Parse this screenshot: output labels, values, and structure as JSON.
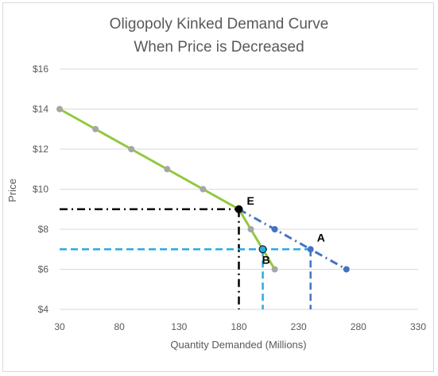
{
  "chart_data": {
    "type": "line",
    "title_lines": [
      "Oligopoly Kinked Demand Curve",
      "When Price is Decreased"
    ],
    "xlabel": "Quantity Demanded (Millions)",
    "ylabel": "Price",
    "xlim": [
      30,
      330
    ],
    "ylim": [
      4,
      16
    ],
    "x_ticks": [
      30,
      80,
      130,
      180,
      230,
      280,
      330
    ],
    "y_ticks": [
      4,
      6,
      8,
      10,
      12,
      14,
      16
    ],
    "y_tick_labels": [
      "$4",
      "$6",
      "$8",
      "$10",
      "$12",
      "$14",
      "$16"
    ],
    "series": [
      {
        "color": "#92c83e",
        "line_style": "solid",
        "points": [
          [
            30,
            14
          ],
          [
            60,
            13
          ],
          [
            90,
            12
          ],
          [
            120,
            11
          ],
          [
            150,
            10
          ],
          [
            180,
            9
          ],
          [
            190,
            8
          ],
          [
            200,
            7
          ],
          [
            210,
            6
          ]
        ]
      },
      {
        "color": "#4472c4",
        "line_style": "dash-dot",
        "points": [
          [
            180,
            9
          ],
          [
            210,
            8
          ],
          [
            240,
            7
          ],
          [
            270,
            6
          ]
        ]
      }
    ],
    "marker_colors": {
      "gray": "#a6a6a6",
      "blue": "#4472c4"
    },
    "guides": [
      {
        "color": "#000000",
        "style": "dash-dot",
        "from": [
          30,
          9
        ],
        "to": [
          180,
          9
        ]
      },
      {
        "color": "#000000",
        "style": "dash-dot",
        "from": [
          180,
          9
        ],
        "to": [
          180,
          4
        ]
      },
      {
        "color": "#29abe2",
        "style": "dashed",
        "from": [
          30,
          7
        ],
        "to": [
          240,
          7
        ]
      },
      {
        "color": "#29abe2",
        "style": "dashed",
        "from": [
          200,
          7
        ],
        "to": [
          200,
          4
        ]
      },
      {
        "color": "#4472c4",
        "style": "dashed",
        "from": [
          240,
          7
        ],
        "to": [
          240,
          4
        ]
      }
    ],
    "annotations": [
      {
        "label": "E",
        "x": 180,
        "y": 9,
        "marker_fill": "#000000"
      },
      {
        "label": "A",
        "x": 240,
        "y": 7
      },
      {
        "label": "B",
        "x": 200,
        "y": 7,
        "marker_fill": "#29abe2"
      }
    ]
  }
}
